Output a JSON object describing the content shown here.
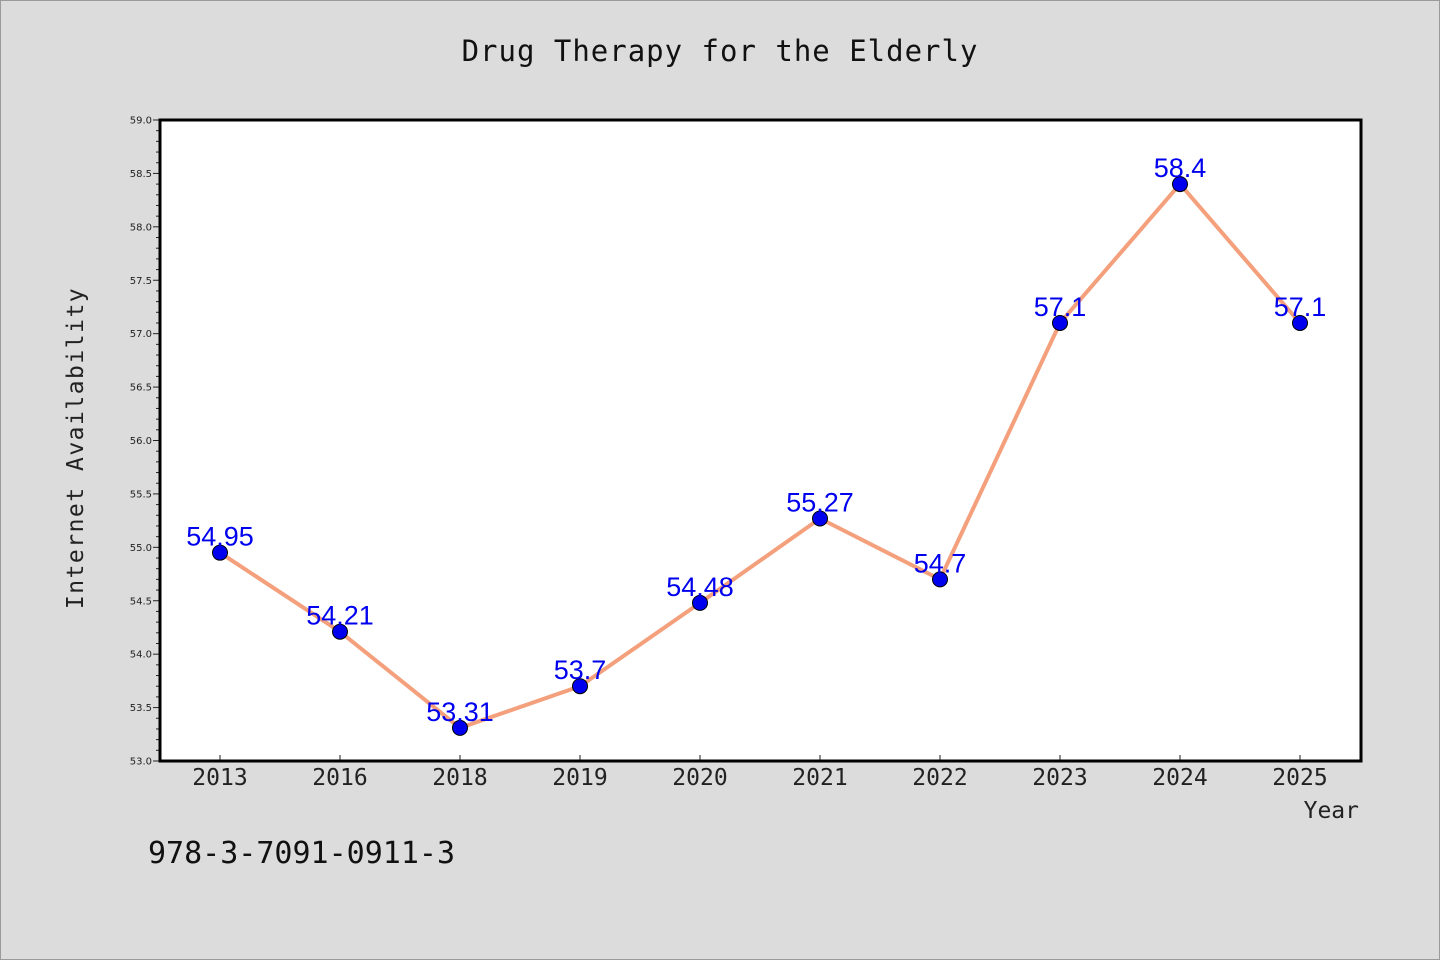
{
  "figure": {
    "title": "Drug Therapy for the Elderly",
    "footnote": "978-3-7091-0911-3",
    "background": "#dcdcdc",
    "plot_background": "#ffffff"
  },
  "chart_data": {
    "type": "line",
    "title": "Drug Therapy for the Elderly",
    "xlabel": "Year",
    "ylabel": "Internet Availability",
    "categories": [
      "2013",
      "2016",
      "2018",
      "2019",
      "2020",
      "2021",
      "2022",
      "2023",
      "2024",
      "2025"
    ],
    "series": [
      {
        "values": [
          54.95,
          54.21,
          53.31,
          53.7,
          54.48,
          55.27,
          54.7,
          57.1,
          58.4,
          57.1
        ],
        "data_labels": [
          "54.95",
          "54.21",
          "53.31",
          "53.7",
          "54.48",
          "55.27",
          "54.7",
          "57.1",
          "58.4",
          "57.1"
        ],
        "line_color": "#f4a07c",
        "marker_color": "#0000ee",
        "label_color": "#0000ee"
      }
    ],
    "ylim": [
      53.0,
      59.0
    ],
    "yticks": [
      "53.0",
      "53.5",
      "54.0",
      "54.5",
      "55.0",
      "55.5",
      "56.0",
      "56.5",
      "57.0",
      "57.5",
      "58.0",
      "58.5",
      "59.0"
    ],
    "ytick_step": 0.5,
    "yminor_step": 0.1,
    "grid": false,
    "legend": "none"
  }
}
